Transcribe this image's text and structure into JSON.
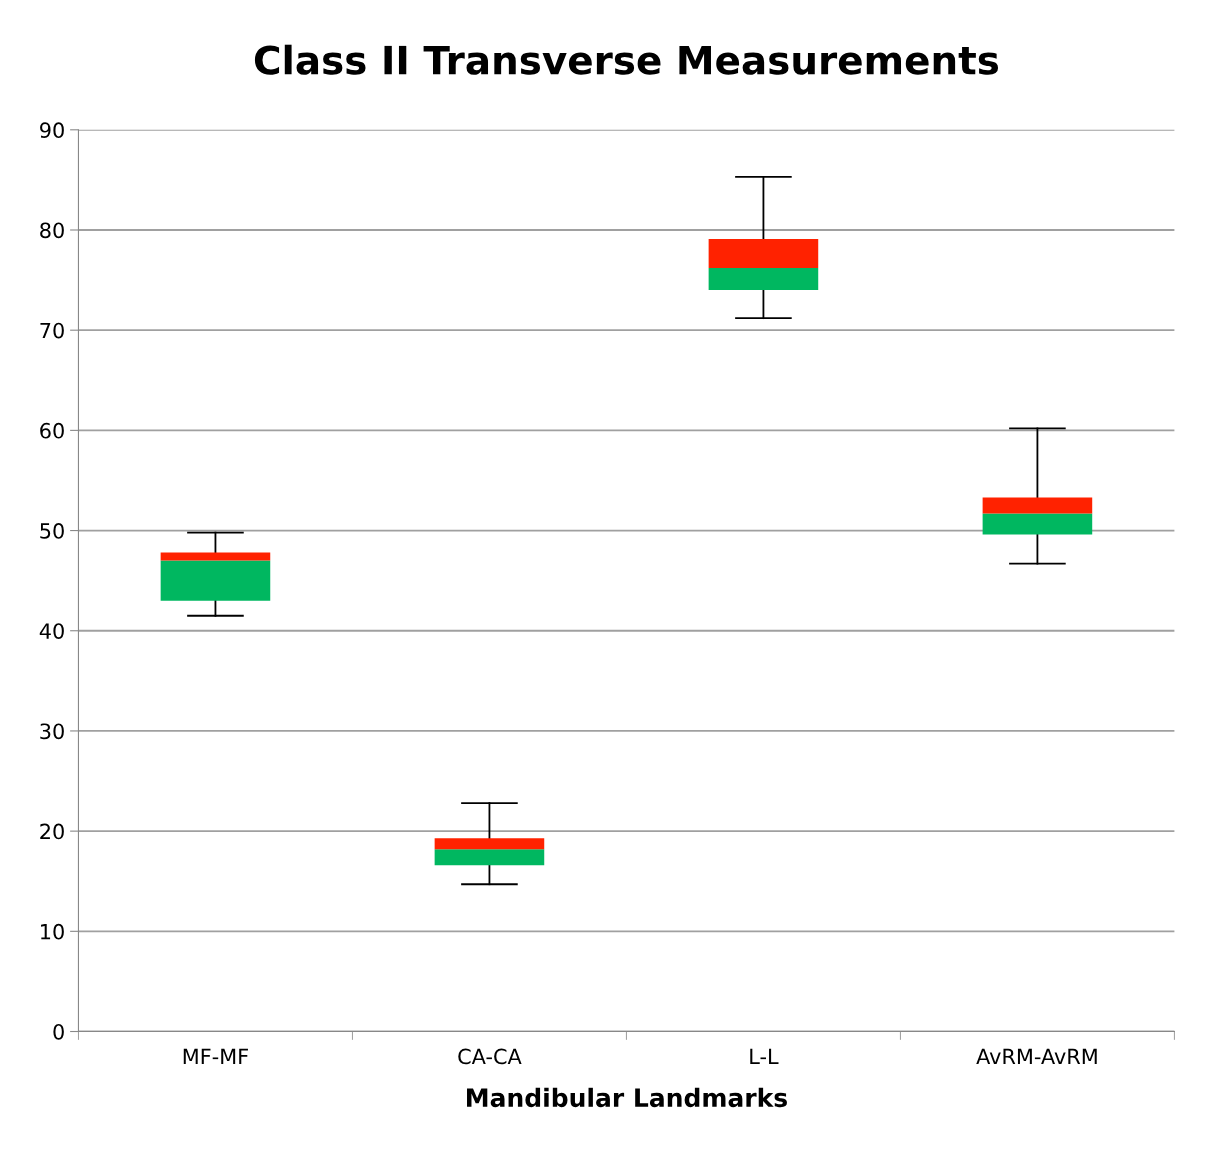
{
  "chart_data": {
    "type": "box",
    "title": "Class II Transverse Measurements",
    "xlabel": "Mandibular Landmarks",
    "categories": [
      "MF-MF",
      "CA-CA",
      "L-L",
      "AvRM-AvRM"
    ],
    "boxes": [
      {
        "low": 41.5,
        "q1": 43.0,
        "median": 47.0,
        "q3": 47.8,
        "high": 49.8
      },
      {
        "low": 14.7,
        "q1": 16.6,
        "median": 18.2,
        "q3": 19.3,
        "high": 22.8
      },
      {
        "low": 71.2,
        "q1": 74.0,
        "median": 76.2,
        "q3": 79.1,
        "high": 85.3
      },
      {
        "low": 46.7,
        "q1": 49.6,
        "median": 51.7,
        "q3": 53.3,
        "high": 60.2
      }
    ],
    "colors": [
      [
        "#00b760",
        "#ff2200"
      ],
      [
        "#00b760",
        "#ff2200"
      ],
      [
        "#00b760",
        "#ff2200"
      ],
      [
        "#00b760",
        "#ff2200"
      ]
    ],
    "ylim": [
      0,
      90
    ],
    "yticks": [
      0,
      10,
      20,
      30,
      40,
      50,
      60,
      70,
      80,
      90
    ],
    "grid": "y",
    "legend": false
  }
}
